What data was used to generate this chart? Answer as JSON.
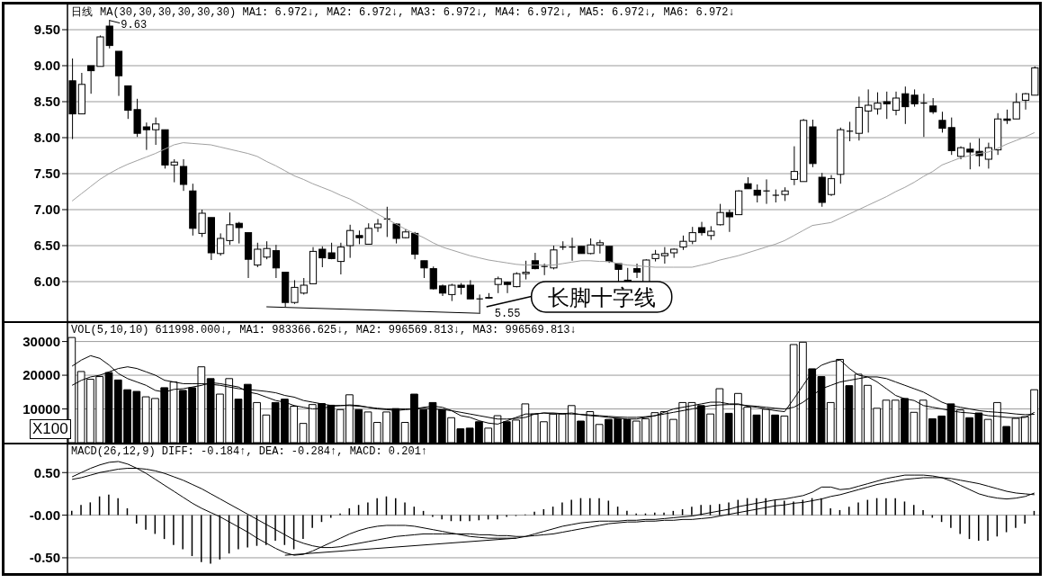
{
  "chart_data": [
    {
      "type": "candlestick",
      "title": "日线",
      "tick_labels": "y",
      "grid": "y",
      "ylim": [
        5.45,
        9.85
      ],
      "yticks": [
        {
          "value": 6,
          "label": "6.00"
        },
        {
          "value": 6.5,
          "label": "6.50"
        },
        {
          "value": 7,
          "label": "7.00"
        },
        {
          "value": 7.5,
          "label": "7.50"
        },
        {
          "value": 8,
          "label": "8.00"
        },
        {
          "value": 8.5,
          "label": "8.50"
        },
        {
          "value": 9,
          "label": "9.00"
        },
        {
          "value": 9.5,
          "label": "9.50"
        }
      ],
      "categories": [
        null,
        null,
        null,
        null,
        null,
        null,
        null,
        null,
        null,
        null,
        null,
        null,
        null,
        null,
        null,
        null,
        null,
        null,
        null,
        null,
        null,
        null,
        null,
        null,
        null,
        null,
        null,
        null,
        null,
        null,
        null,
        null,
        null,
        null,
        null,
        null,
        null,
        null,
        null,
        null,
        null,
        null,
        null,
        null,
        null,
        null,
        null,
        null,
        null,
        null,
        null,
        null,
        null,
        null,
        null,
        null,
        null,
        null,
        null,
        null,
        null,
        null,
        null,
        null,
        null,
        null,
        null,
        null,
        null,
        null,
        null,
        null,
        null,
        null,
        null,
        null,
        null,
        null,
        null,
        null,
        null,
        null,
        null,
        null,
        null,
        null,
        null,
        null,
        null,
        null,
        null,
        null,
        null,
        null,
        null,
        null,
        null,
        null,
        null,
        null,
        null,
        null,
        null,
        null,
        null
      ],
      "ohlc": [
        [
          8.79,
          9.1,
          7.98,
          8.33
        ],
        [
          8.33,
          8.9,
          8.33,
          8.74
        ],
        [
          9.0,
          9.0,
          8.61,
          8.93
        ],
        [
          8.99,
          9.42,
          8.99,
          9.4
        ],
        [
          9.55,
          9.63,
          9.24,
          9.28
        ],
        [
          9.2,
          9.2,
          8.58,
          8.86
        ],
        [
          8.72,
          8.72,
          8.26,
          8.38
        ],
        [
          8.39,
          8.54,
          8.01,
          8.06
        ],
        [
          8.15,
          8.21,
          7.83,
          8.11
        ],
        [
          8.11,
          8.28,
          7.9,
          8.19
        ],
        [
          8.11,
          8.11,
          7.57,
          7.62
        ],
        [
          7.62,
          7.7,
          7.38,
          7.66
        ],
        [
          7.6,
          7.7,
          7.26,
          7.35
        ],
        [
          7.26,
          7.36,
          6.64,
          6.74
        ],
        [
          6.67,
          7.0,
          6.62,
          6.95
        ],
        [
          6.89,
          6.89,
          6.3,
          6.4
        ],
        [
          6.39,
          6.67,
          6.36,
          6.6
        ],
        [
          6.57,
          6.96,
          6.51,
          6.79
        ],
        [
          6.81,
          6.83,
          6.53,
          6.75
        ],
        [
          6.68,
          6.68,
          6.05,
          6.31
        ],
        [
          6.23,
          6.54,
          6.2,
          6.45
        ],
        [
          6.34,
          6.56,
          6.31,
          6.46
        ],
        [
          6.43,
          6.51,
          6.05,
          6.19
        ],
        [
          6.13,
          6.13,
          5.65,
          5.71
        ],
        [
          5.71,
          6.02,
          5.69,
          5.92
        ],
        [
          5.84,
          6.05,
          5.82,
          5.95
        ],
        [
          5.97,
          6.48,
          5.97,
          6.42
        ],
        [
          6.45,
          6.49,
          6.2,
          6.33
        ],
        [
          6.4,
          6.54,
          6.31,
          6.32
        ],
        [
          6.28,
          6.54,
          6.1,
          6.48
        ],
        [
          6.5,
          6.79,
          6.33,
          6.71
        ],
        [
          6.64,
          6.71,
          6.52,
          6.61
        ],
        [
          6.52,
          6.81,
          6.52,
          6.74
        ],
        [
          6.75,
          6.87,
          6.69,
          6.8
        ],
        [
          6.87,
          7.04,
          6.62,
          6.87
        ],
        [
          6.8,
          6.81,
          6.53,
          6.6
        ],
        [
          6.61,
          6.73,
          6.6,
          6.69
        ],
        [
          6.67,
          6.69,
          6.31,
          6.38
        ],
        [
          6.29,
          6.29,
          6.05,
          6.19
        ],
        [
          6.18,
          6.21,
          5.89,
          5.9
        ],
        [
          5.94,
          5.96,
          5.8,
          5.84
        ],
        [
          5.82,
          5.97,
          5.73,
          5.95
        ],
        [
          5.95,
          5.98,
          5.82,
          5.92
        ],
        [
          5.95,
          6.02,
          5.76,
          5.76
        ],
        [
          5.76,
          5.82,
          5.55,
          5.76
        ],
        [
          5.77,
          5.84,
          5.76,
          5.78
        ],
        [
          5.96,
          6.07,
          5.84,
          6.04
        ],
        [
          5.99,
          6.0,
          5.84,
          5.96
        ],
        [
          5.93,
          6.13,
          5.92,
          6.11
        ],
        [
          6.11,
          6.29,
          6.03,
          6.13
        ],
        [
          6.29,
          6.4,
          6.17,
          6.18
        ],
        [
          6.21,
          6.25,
          6.09,
          6.21
        ],
        [
          6.19,
          6.5,
          6.17,
          6.44
        ],
        [
          6.48,
          6.56,
          6.44,
          6.48
        ],
        [
          6.48,
          6.61,
          6.29,
          6.48
        ],
        [
          6.49,
          6.49,
          6.39,
          6.39
        ],
        [
          6.39,
          6.6,
          6.38,
          6.51
        ],
        [
          6.51,
          6.58,
          6.39,
          6.54
        ],
        [
          6.49,
          6.49,
          6.26,
          6.28
        ],
        [
          6.25,
          6.25,
          6.0,
          6.17
        ],
        [
          6.02,
          6.19,
          5.98,
          5.99
        ],
        [
          6.18,
          6.25,
          6.05,
          6.13
        ],
        [
          5.98,
          6.31,
          5.98,
          6.3
        ],
        [
          6.32,
          6.44,
          6.28,
          6.38
        ],
        [
          6.36,
          6.48,
          6.25,
          6.39
        ],
        [
          6.4,
          6.46,
          6.33,
          6.45
        ],
        [
          6.48,
          6.64,
          6.44,
          6.56
        ],
        [
          6.56,
          6.76,
          6.52,
          6.68
        ],
        [
          6.75,
          6.83,
          6.64,
          6.68
        ],
        [
          6.64,
          6.77,
          6.58,
          6.7
        ],
        [
          6.79,
          7.08,
          6.78,
          6.96
        ],
        [
          6.96,
          7.0,
          6.69,
          6.9
        ],
        [
          6.93,
          7.27,
          6.93,
          7.26
        ],
        [
          7.36,
          7.45,
          7.29,
          7.29
        ],
        [
          7.27,
          7.35,
          7.1,
          7.2
        ],
        [
          7.26,
          7.42,
          7.08,
          7.26
        ],
        [
          7.2,
          7.28,
          7.1,
          7.2
        ],
        [
          7.21,
          7.31,
          7.12,
          7.26
        ],
        [
          7.42,
          7.88,
          7.34,
          7.53
        ],
        [
          7.39,
          8.26,
          7.39,
          8.24
        ],
        [
          8.15,
          8.25,
          7.59,
          7.64
        ],
        [
          7.45,
          7.51,
          7.04,
          7.1
        ],
        [
          7.21,
          7.48,
          7.19,
          7.43
        ],
        [
          7.49,
          8.14,
          7.36,
          8.11
        ],
        [
          8.09,
          8.22,
          7.95,
          8.09
        ],
        [
          8.06,
          8.57,
          7.96,
          8.42
        ],
        [
          8.37,
          8.67,
          8.07,
          8.45
        ],
        [
          8.4,
          8.63,
          8.32,
          8.48
        ],
        [
          8.5,
          8.64,
          8.26,
          8.47
        ],
        [
          8.38,
          8.64,
          8.31,
          8.55
        ],
        [
          8.61,
          8.71,
          8.19,
          8.43
        ],
        [
          8.59,
          8.67,
          8.43,
          8.47
        ],
        [
          8.48,
          8.61,
          8.01,
          8.48
        ],
        [
          8.44,
          8.55,
          8.33,
          8.36
        ],
        [
          8.24,
          8.36,
          8.07,
          8.13
        ],
        [
          8.14,
          8.28,
          7.76,
          7.82
        ],
        [
          7.74,
          7.88,
          7.7,
          7.86
        ],
        [
          7.84,
          7.93,
          7.56,
          7.8
        ],
        [
          7.81,
          7.99,
          7.6,
          7.75
        ],
        [
          7.7,
          7.93,
          7.57,
          7.86
        ],
        [
          7.83,
          8.34,
          7.76,
          8.26
        ],
        [
          8.26,
          8.39,
          8.19,
          8.24
        ],
        [
          8.26,
          8.62,
          8.26,
          8.49
        ],
        [
          8.52,
          8.62,
          8.39,
          8.61
        ],
        [
          8.59,
          8.99,
          8.59,
          8.97
        ]
      ],
      "colors": [
        "#000000",
        "#ffffff",
        "#000000",
        "#ffffff",
        "#000000",
        "#000000",
        "#000000",
        "#000000",
        "#000000",
        "#ffffff",
        "#000000",
        "#ffffff",
        "#000000",
        "#000000",
        "#ffffff",
        "#000000",
        "#ffffff",
        "#ffffff",
        "#000000",
        "#000000",
        "#ffffff",
        "#ffffff",
        "#000000",
        "#000000",
        "#ffffff",
        "#ffffff",
        "#ffffff",
        "#000000",
        "#000000",
        "#ffffff",
        "#ffffff",
        "#000000",
        "#ffffff",
        "#ffffff",
        "#000000",
        "#000000",
        "#ffffff",
        "#000000",
        "#000000",
        "#000000",
        "#000000",
        "#ffffff",
        "#000000",
        "#000000",
        "#000000",
        "#ffffff",
        "#ffffff",
        "#000000",
        "#ffffff",
        "#ffffff",
        "#000000",
        "#000000",
        "#ffffff",
        "#000000",
        "#000000",
        "#000000",
        "#ffffff",
        "#ffffff",
        "#000000",
        "#000000",
        "#000000",
        "#000000",
        "#ffffff",
        "#ffffff",
        "#ffffff",
        "#ffffff",
        "#ffffff",
        "#ffffff",
        "#000000",
        "#ffffff",
        "#ffffff",
        "#000000",
        "#ffffff",
        "#000000",
        "#000000",
        "#000000",
        "#000000",
        "#ffffff",
        "#ffffff",
        "#ffffff",
        "#000000",
        "#000000",
        "#ffffff",
        "#ffffff",
        "#000000",
        "#ffffff",
        "#ffffff",
        "#ffffff",
        "#000000",
        "#ffffff",
        "#000000",
        "#000000",
        "#000000",
        "#000000",
        "#000000",
        "#000000",
        "#ffffff",
        "#000000",
        "#000000",
        "#ffffff",
        "#ffffff",
        "#000000",
        "#ffffff",
        "#ffffff",
        "#ffffff"
      ],
      "series": [
        {
          "type": "line",
          "color": "#a0a0a0",
          "values": [
            7.12,
            7.22,
            7.32,
            7.42,
            7.5,
            7.57,
            7.63,
            7.68,
            7.73,
            7.78,
            7.84,
            7.9,
            7.93,
            7.92,
            7.91,
            7.9,
            7.87,
            7.84,
            7.81,
            7.78,
            7.74,
            7.67,
            7.61,
            7.54,
            7.47,
            7.42,
            7.36,
            7.31,
            7.26,
            7.2,
            7.15,
            7.08,
            7.01,
            6.94,
            6.87,
            6.8,
            6.73,
            6.67,
            6.61,
            6.54,
            6.48,
            6.44,
            6.4,
            6.36,
            6.33,
            6.3,
            6.28,
            6.26,
            6.24,
            6.23,
            6.23,
            6.23,
            6.23,
            6.25,
            6.27,
            6.29,
            6.29,
            6.28,
            6.28,
            6.25,
            6.23,
            6.22,
            6.21,
            6.2,
            6.2,
            6.2,
            6.2,
            6.2,
            6.23,
            6.26,
            6.3,
            6.33,
            6.36,
            6.4,
            6.44,
            6.48,
            6.52,
            6.57,
            6.64,
            6.71,
            6.78,
            6.8,
            6.82,
            6.88,
            6.94,
            7.0,
            7.06,
            7.12,
            7.18,
            7.25,
            7.31,
            7.38,
            7.46,
            7.53,
            7.62,
            7.67,
            7.72,
            7.75,
            7.78,
            7.8,
            7.85,
            7.91,
            7.96,
            8.01,
            8.07
          ]
        },
        {
          "type": "line",
          "color": "#000000",
          "values": [
            null,
            null,
            null,
            null,
            null,
            null,
            null,
            null,
            null,
            null,
            null,
            null,
            null,
            null,
            null,
            null,
            null,
            null,
            null,
            null,
            null,
            5.65,
            null,
            null,
            null,
            null,
            null,
            null,
            null,
            null,
            null,
            null,
            null,
            null,
            null,
            null,
            null,
            null,
            null,
            null,
            null,
            null,
            null,
            null,
            5.56,
            null,
            null,
            null,
            null,
            null,
            null,
            null,
            null,
            null,
            null,
            null,
            null,
            null,
            null,
            null,
            null,
            null,
            null,
            null,
            null,
            null,
            null,
            null,
            null,
            null,
            null,
            null,
            null,
            null,
            null,
            null,
            null,
            null,
            null,
            null,
            null,
            null,
            null,
            null,
            null,
            null,
            null,
            null,
            null,
            null,
            null,
            null,
            null,
            null,
            null,
            null,
            null,
            null,
            null,
            null,
            null,
            null,
            null,
            null,
            null
          ]
        }
      ],
      "annotations": [
        "MA(30,30,30,30,30,30) MA1: 6.972↓, MA2: 6.972↓, MA3: 6.972↓, MA4: 6.972↓, MA5: 6.972↓, MA6: 6.972↓",
        "9.63",
        "5.55",
        "长脚十字线"
      ]
    },
    {
      "type": "bar",
      "tick_labels": "y",
      "grid": "y",
      "ylim": [
        0,
        35500
      ],
      "yticks": [
        10000,
        20000,
        30000
      ],
      "categories": [
        null,
        null,
        null,
        null,
        null,
        null,
        null,
        null,
        null,
        null,
        null,
        null,
        null,
        null,
        null,
        null,
        null,
        null,
        null,
        null,
        null,
        null,
        null,
        null,
        null,
        null,
        null,
        null,
        null,
        null,
        null,
        null,
        null,
        null,
        null,
        null,
        null,
        null,
        null,
        null,
        null,
        null,
        null,
        null,
        null,
        null,
        null,
        null,
        null,
        null,
        null,
        null,
        null,
        null,
        null,
        null,
        null,
        null,
        null,
        null,
        null,
        null,
        null,
        null,
        null,
        null,
        null,
        null,
        null,
        null,
        null,
        null,
        null,
        null,
        null,
        null,
        null,
        null,
        null,
        null,
        null,
        null,
        null,
        null,
        null,
        null,
        null,
        null,
        null,
        null,
        null,
        null,
        null,
        null,
        null,
        null,
        null,
        null,
        null,
        null,
        null,
        null,
        null,
        null,
        null
      ],
      "series": [
        {
          "type": "bar",
          "values": [
            31200,
            21100,
            18800,
            19600,
            20800,
            18600,
            15700,
            15200,
            13600,
            13100,
            16300,
            18000,
            15500,
            16300,
            22500,
            19000,
            14400,
            19000,
            12900,
            17300,
            11900,
            8200,
            11900,
            12900,
            10800,
            5700,
            11300,
            11600,
            11100,
            9800,
            14200,
            9800,
            9100,
            6000,
            9100,
            10100,
            6000,
            14400,
            9800,
            11900,
            9800,
            7400,
            4100,
            4300,
            6200,
            4300,
            8000,
            6200,
            6700,
            11500,
            8500,
            6200,
            8500,
            8500,
            11000,
            6400,
            9200,
            5400,
            6900,
            7100,
            6800,
            6400,
            7100,
            8900,
            9200,
            6900,
            11900,
            11900,
            11000,
            8500,
            16000,
            8700,
            14600,
            10500,
            8200,
            9900,
            8200,
            7900,
            29100,
            29800,
            21900,
            19600,
            11900,
            24700,
            16900,
            20300,
            17000,
            10200,
            12600,
            12600,
            13100,
            9000,
            12600,
            7100,
            7900,
            11500,
            9700,
            7400,
            8800,
            6900,
            11900,
            4800,
            7200,
            7700,
            15700
          ],
          "colors": [
            "#ffffff",
            "#ffffff",
            "#ffffff",
            "#ffffff",
            "#000000",
            "#000000",
            "#000000",
            "#000000",
            "#ffffff",
            "#ffffff",
            "#000000",
            "#ffffff",
            "#000000",
            "#000000",
            "#ffffff",
            "#000000",
            "#ffffff",
            "#ffffff",
            "#000000",
            "#000000",
            "#ffffff",
            "#ffffff",
            "#000000",
            "#000000",
            "#ffffff",
            "#ffffff",
            "#ffffff",
            "#000000",
            "#000000",
            "#ffffff",
            "#ffffff",
            "#000000",
            "#ffffff",
            "#ffffff",
            "#ffffff",
            "#000000",
            "#ffffff",
            "#000000",
            "#000000",
            "#000000",
            "#000000",
            "#ffffff",
            "#000000",
            "#000000",
            "#000000",
            "#ffffff",
            "#ffffff",
            "#000000",
            "#ffffff",
            "#ffffff",
            "#ffffff",
            "#ffffff",
            "#ffffff",
            "#ffffff",
            "#ffffff",
            "#000000",
            "#ffffff",
            "#ffffff",
            "#000000",
            "#000000",
            "#000000",
            "#ffffff",
            "#ffffff",
            "#ffffff",
            "#ffffff",
            "#ffffff",
            "#ffffff",
            "#ffffff",
            "#000000",
            "#ffffff",
            "#ffffff",
            "#000000",
            "#ffffff",
            "#ffffff",
            "#000000",
            "#ffffff",
            "#000000",
            "#ffffff",
            "#ffffff",
            "#ffffff",
            "#000000",
            "#000000",
            "#ffffff",
            "#ffffff",
            "#000000",
            "#ffffff",
            "#ffffff",
            "#ffffff",
            "#ffffff",
            "#ffffff",
            "#000000",
            "#ffffff",
            "#ffffff",
            "#000000",
            "#000000",
            "#000000",
            "#ffffff",
            "#000000",
            "#000000",
            "#ffffff",
            "#ffffff",
            "#000000",
            "#ffffff",
            "#ffffff",
            "#ffffff"
          ]
        },
        {
          "type": "line",
          "color": "#000000",
          "values": [
            22700,
            24500,
            25800,
            25000,
            23000,
            20500,
            19000,
            18000,
            17000,
            15500,
            15000,
            15800,
            16000,
            16500,
            17000,
            17800,
            17500,
            17000,
            16500,
            15000,
            14500,
            13500,
            12500,
            12000,
            11000,
            10500,
            10000,
            10200,
            10800,
            11000,
            11200,
            11000,
            10500,
            10000,
            9800,
            9500,
            9800,
            10000,
            10500,
            10800,
            10500,
            9500,
            8000,
            7500,
            6500,
            5800,
            5500,
            6500,
            7500,
            8500,
            8500,
            8800,
            8500,
            8600,
            8800,
            8300,
            8000,
            7800,
            7500,
            7200,
            7000,
            7000,
            7500,
            8000,
            9000,
            10000,
            10500,
            11000,
            11500,
            12000,
            12000,
            11500,
            11500,
            10800,
            10500,
            10000,
            9500,
            9200,
            13000,
            17000,
            21000,
            23000,
            24000,
            24500,
            22000,
            20000,
            19500,
            18000,
            16000,
            14000,
            13000,
            12500,
            11000,
            10500,
            10000,
            9500,
            9000,
            8800,
            8500,
            8000,
            7800,
            7500,
            7400,
            7500,
            9000
          ]
        },
        {
          "type": "line",
          "color": "#000000",
          "values": [
            17000,
            18500,
            19500,
            20000,
            21000,
            22000,
            22500,
            22000,
            21000,
            20000,
            18500,
            18000,
            17500,
            17500,
            17500,
            17300,
            17000,
            16500,
            16000,
            15800,
            15500,
            15200,
            14800,
            14000,
            13500,
            12500,
            12000,
            11500,
            11000,
            11000,
            11000,
            10800,
            10500,
            10200,
            10000,
            10000,
            10000,
            10000,
            10200,
            10000,
            9800,
            9500,
            9000,
            8500,
            8000,
            7500,
            7000,
            7000,
            7200,
            7500,
            8500,
            8800,
            8800,
            8600,
            8500,
            8400,
            8200,
            8000,
            7800,
            7600,
            7500,
            7500,
            7700,
            8000,
            8500,
            9000,
            9500,
            10000,
            10500,
            11000,
            11200,
            11300,
            11300,
            11000,
            10800,
            10500,
            10200,
            10000,
            10500,
            12000,
            14000,
            16000,
            17000,
            18000,
            18500,
            19000,
            19500,
            19500,
            19000,
            18000,
            17000,
            16000,
            15000,
            13500,
            12000,
            11000,
            10500,
            10000,
            9500,
            9200,
            9000,
            8800,
            8500,
            8300,
            8400
          ]
        }
      ],
      "annotations": [
        "VOL(5,10,10) 611998.000↓, MA1: 983366.625↓, MA2: 996569.813↓, MA3: 996569.813↓",
        "X100"
      ]
    },
    {
      "type": "bar",
      "tick_labels": "y",
      "grid": "y",
      "ylim": [
        -0.68,
        0.83
      ],
      "yticks": [
        {
          "value": -0.5,
          "label": "-0.50"
        },
        {
          "value": 0,
          "label": "-0.00"
        },
        {
          "value": 0.5,
          "label": "0.50"
        }
      ],
      "categories": [
        null,
        null,
        null,
        null,
        null,
        null,
        null,
        null,
        null,
        null,
        null,
        null,
        null,
        null,
        null,
        null,
        null,
        null,
        null,
        null,
        null,
        null,
        null,
        null,
        null,
        null,
        null,
        null,
        null,
        null,
        null,
        null,
        null,
        null,
        null,
        null,
        null,
        null,
        null,
        null,
        null,
        null,
        null,
        null,
        null,
        null,
        null,
        null,
        null,
        null,
        null,
        null,
        null,
        null,
        null,
        null,
        null,
        null,
        null,
        null,
        null,
        null,
        null,
        null,
        null,
        null,
        null,
        null,
        null,
        null,
        null,
        null,
        null,
        null,
        null,
        null,
        null,
        null,
        null,
        null,
        null,
        null,
        null,
        null,
        null,
        null,
        null,
        null,
        null,
        null,
        null,
        null,
        null,
        null,
        null,
        null,
        null,
        null,
        null,
        null,
        null,
        null,
        null,
        null,
        null
      ],
      "series": [
        {
          "type": "bar",
          "color": "#000000",
          "values": [
            0.05,
            0.12,
            0.15,
            0.22,
            0.24,
            0.2,
            0.08,
            -0.1,
            -0.17,
            -0.22,
            -0.28,
            -0.35,
            -0.4,
            -0.48,
            -0.55,
            -0.57,
            -0.52,
            -0.45,
            -0.4,
            -0.38,
            -0.36,
            -0.35,
            -0.3,
            -0.35,
            -0.4,
            -0.28,
            -0.15,
            -0.08,
            -0.03,
            0.02,
            0.08,
            0.12,
            0.15,
            0.2,
            0.22,
            0.2,
            0.15,
            0.1,
            0.05,
            -0.02,
            -0.05,
            -0.07,
            -0.07,
            -0.07,
            -0.06,
            -0.05,
            -0.05,
            -0.02,
            -0.01,
            0.01,
            0.04,
            0.07,
            0.1,
            0.15,
            0.18,
            0.2,
            0.2,
            0.2,
            0.17,
            0.1,
            0.05,
            0.02,
            0.02,
            0.03,
            0.03,
            0.05,
            0.07,
            0.1,
            0.12,
            0.12,
            0.13,
            0.15,
            0.18,
            0.2,
            0.2,
            0.2,
            0.18,
            0.17,
            0.16,
            0.18,
            0.2,
            0.2,
            0.08,
            0.06,
            0.1,
            0.15,
            0.18,
            0.2,
            0.2,
            0.2,
            0.16,
            0.12,
            0.06,
            -0.03,
            -0.08,
            -0.15,
            -0.22,
            -0.28,
            -0.3,
            -0.3,
            -0.25,
            -0.2,
            -0.15,
            -0.1,
            0.05
          ]
        },
        {
          "type": "line",
          "color": "#000000",
          "values": [
            0.45,
            0.5,
            0.55,
            0.59,
            0.62,
            0.63,
            0.6,
            0.55,
            0.49,
            0.42,
            0.35,
            0.28,
            0.21,
            0.14,
            0.08,
            0.03,
            -0.02,
            -0.08,
            -0.14,
            -0.2,
            -0.27,
            -0.33,
            -0.39,
            -0.44,
            -0.47,
            -0.46,
            -0.42,
            -0.37,
            -0.32,
            -0.27,
            -0.22,
            -0.18,
            -0.15,
            -0.13,
            -0.12,
            -0.12,
            -0.12,
            -0.13,
            -0.15,
            -0.17,
            -0.19,
            -0.21,
            -0.23,
            -0.25,
            -0.26,
            -0.27,
            -0.27,
            -0.27,
            -0.27,
            -0.25,
            -0.22,
            -0.19,
            -0.16,
            -0.13,
            -0.11,
            -0.09,
            -0.08,
            -0.07,
            -0.07,
            -0.07,
            -0.06,
            -0.06,
            -0.05,
            -0.05,
            -0.04,
            -0.03,
            -0.02,
            -0.01,
            0.01,
            0.03,
            0.05,
            0.07,
            0.1,
            0.12,
            0.14,
            0.16,
            0.18,
            0.19,
            0.21,
            0.23,
            0.27,
            0.33,
            0.33,
            0.3,
            0.31,
            0.34,
            0.37,
            0.4,
            0.43,
            0.45,
            0.47,
            0.47,
            0.47,
            0.46,
            0.44,
            0.4,
            0.35,
            0.3,
            0.25,
            0.22,
            0.2,
            0.19,
            0.2,
            0.22,
            0.26
          ]
        },
        {
          "type": "line",
          "color": "#000000",
          "values": [
            0.42,
            0.44,
            0.47,
            0.5,
            0.52,
            0.54,
            0.55,
            0.55,
            0.54,
            0.52,
            0.49,
            0.45,
            0.41,
            0.36,
            0.31,
            0.25,
            0.19,
            0.13,
            0.07,
            0.01,
            -0.05,
            -0.11,
            -0.17,
            -0.23,
            -0.29,
            -0.33,
            -0.36,
            -0.38,
            -0.38,
            -0.37,
            -0.35,
            -0.33,
            -0.31,
            -0.29,
            -0.27,
            -0.25,
            -0.24,
            -0.23,
            -0.22,
            -0.22,
            -0.22,
            -0.22,
            -0.22,
            -0.22,
            -0.23,
            -0.23,
            -0.24,
            -0.24,
            -0.25,
            -0.25,
            -0.24,
            -0.23,
            -0.22,
            -0.2,
            -0.18,
            -0.16,
            -0.14,
            -0.12,
            -0.1,
            -0.09,
            -0.08,
            -0.08,
            -0.07,
            -0.07,
            -0.06,
            -0.06,
            -0.05,
            -0.05,
            -0.04,
            -0.03,
            -0.01,
            0.01,
            0.03,
            0.05,
            0.07,
            0.09,
            0.11,
            0.12,
            0.14,
            0.15,
            0.17,
            0.19,
            0.22,
            0.24,
            0.27,
            0.3,
            0.33,
            0.36,
            0.38,
            0.4,
            0.42,
            0.43,
            0.44,
            0.44,
            0.44,
            0.43,
            0.41,
            0.39,
            0.37,
            0.34,
            0.31,
            0.28,
            0.26,
            0.25,
            0.24
          ]
        },
        {
          "type": "line",
          "color": "#000000",
          "values": [
            null,
            null,
            null,
            null,
            null,
            null,
            null,
            null,
            null,
            null,
            null,
            null,
            null,
            null,
            null,
            null,
            null,
            null,
            null,
            null,
            null,
            null,
            null,
            -0.47,
            null,
            null,
            null,
            null,
            null,
            null,
            null,
            null,
            null,
            null,
            null,
            null,
            null,
            null,
            null,
            null,
            null,
            null,
            null,
            null,
            null,
            null,
            null,
            null,
            -0.27,
            null,
            null,
            null,
            null,
            null,
            null,
            null,
            null,
            null,
            null,
            null,
            null,
            null,
            null,
            null,
            null,
            null,
            null,
            null,
            null,
            null,
            null,
            null,
            null,
            null,
            null,
            null,
            null,
            null,
            null,
            null,
            null,
            null,
            null,
            null,
            null,
            null,
            null,
            null,
            null,
            null,
            null,
            null,
            null,
            null,
            null,
            null,
            null,
            null,
            null,
            null,
            null,
            null,
            null,
            null,
            null
          ]
        }
      ],
      "annotations": [
        "MACD(26,12,9) DIFF: -0.184↑, DEA: -0.284↑, MACD: 0.201↑"
      ]
    }
  ]
}
